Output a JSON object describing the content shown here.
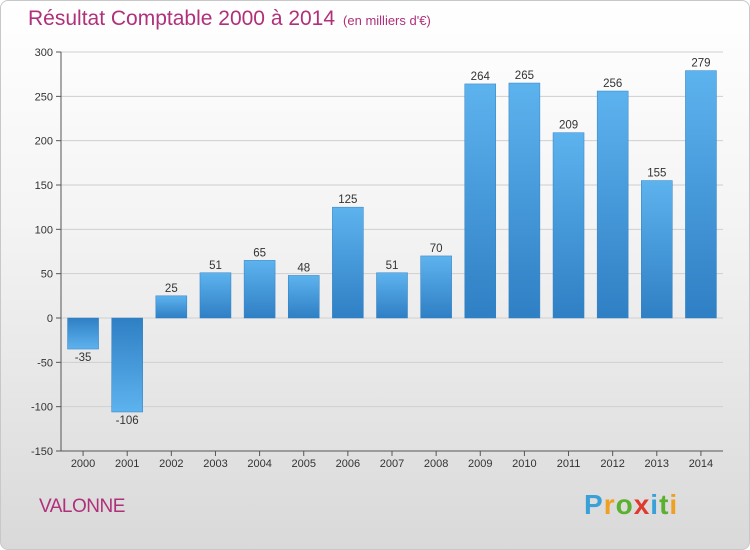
{
  "header": {
    "title": "Résultat Comptable 2000 à 2014",
    "subtitle": "(en milliers d'€)"
  },
  "footer": {
    "commune": "VALONNE",
    "brand": [
      "P",
      "r",
      "o",
      "x",
      "i",
      "t",
      "i"
    ],
    "brand_colors": [
      "#3aa0d8",
      "#f0a020",
      "#5bb030",
      "#e03a30",
      "#3aa0d8",
      "#5bb030",
      "#f0a020"
    ]
  },
  "chart_data": {
    "type": "bar",
    "title": "Résultat Comptable 2000 à 2014",
    "ylabel": "en milliers d'€",
    "categories": [
      "2000",
      "2001",
      "2002",
      "2003",
      "2004",
      "2005",
      "2006",
      "2007",
      "2008",
      "2009",
      "2010",
      "2011",
      "2012",
      "2013",
      "2014"
    ],
    "values": [
      -35,
      -106,
      25,
      51,
      65,
      48,
      125,
      51,
      70,
      264,
      265,
      209,
      256,
      155,
      279
    ],
    "value_labels": [
      "-35",
      "-106",
      "25",
      "51",
      "65",
      "48",
      "125",
      "51",
      "70",
      "264",
      "265",
      "209",
      "256",
      "155",
      "279"
    ],
    "ylim": [
      -150,
      300
    ],
    "yticks": [
      -150,
      -100,
      -50,
      0,
      50,
      100,
      150,
      200,
      250,
      300
    ],
    "ytick_labels": [
      "-150",
      "-100",
      "-50",
      "0",
      "50",
      "100",
      "150",
      "200",
      "250",
      "300"
    ],
    "grid": true,
    "bar_color": "#3d93d6",
    "bar_color_light": "#5db3ee"
  }
}
